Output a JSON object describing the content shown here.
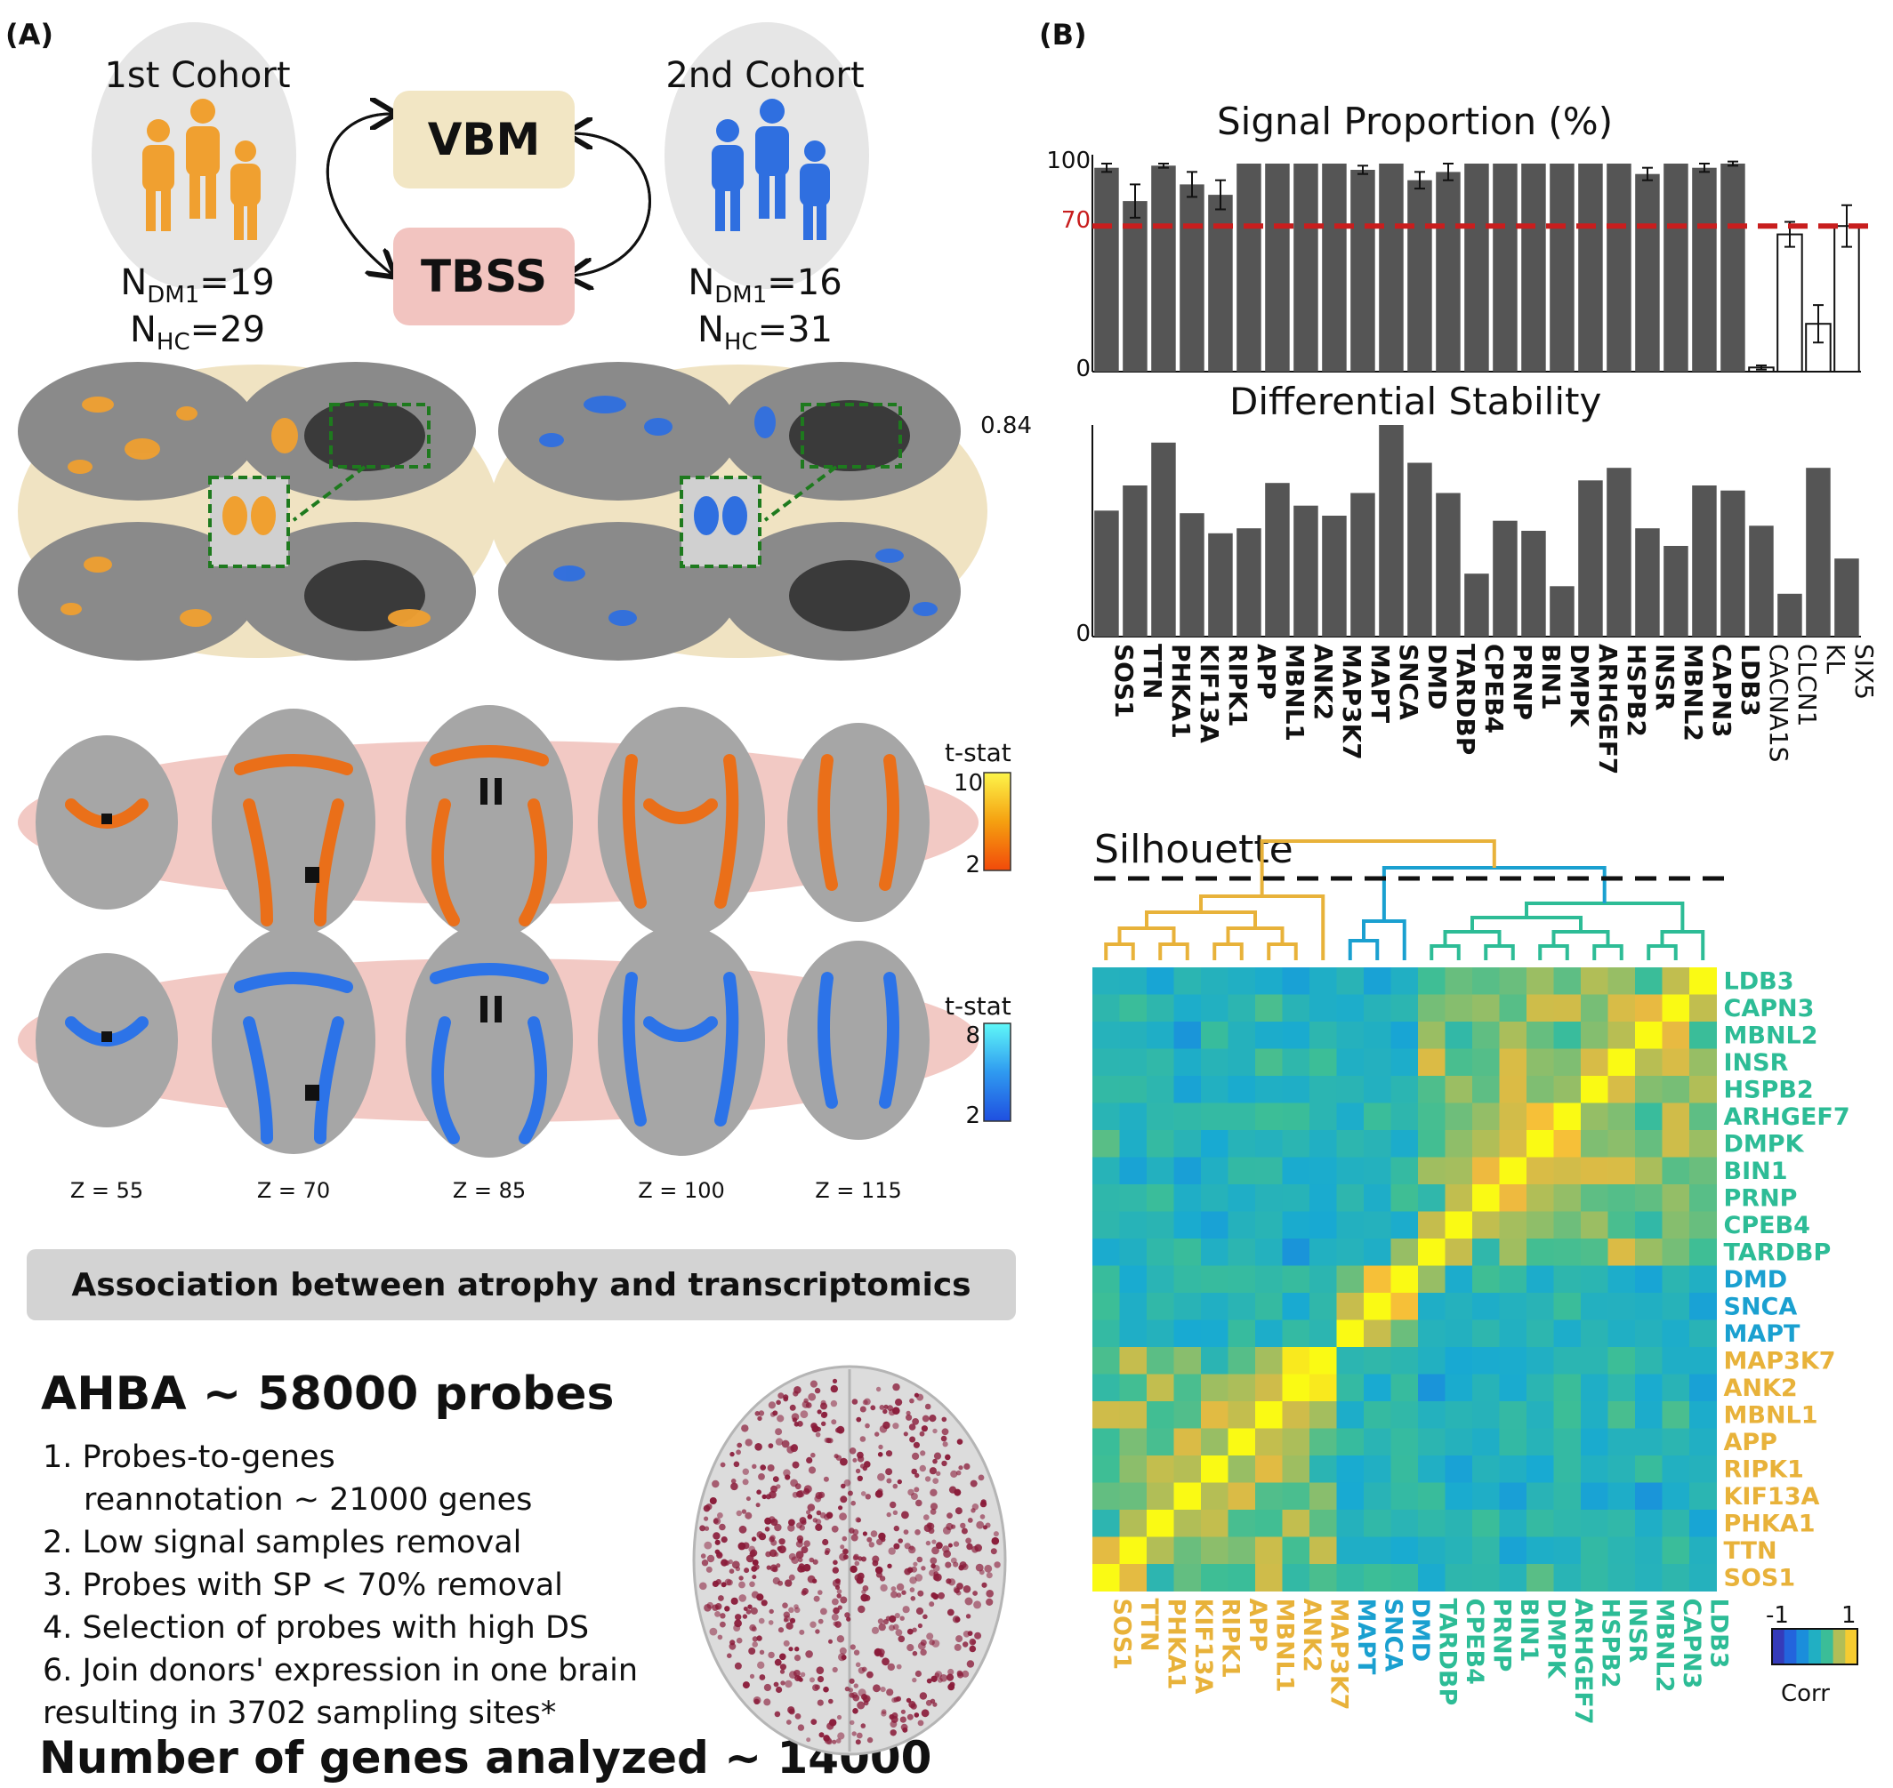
{
  "panel_a": {
    "label": "(A)",
    "cohort1": {
      "title": "1st Cohort",
      "n_dm1_prefix": "N",
      "n_dm1_sub": "DM1",
      "n_dm1_value": "=19",
      "n_hc_prefix": "N",
      "n_hc_sub": "HC",
      "n_hc_value": "=29",
      "color": "#f0a030"
    },
    "cohort2": {
      "title": "2nd Cohort",
      "n_dm1_prefix": "N",
      "n_dm1_sub": "DM1",
      "n_dm1_value": "=16",
      "n_hc_prefix": "N",
      "n_hc_sub": "HC",
      "n_hc_value": "=31",
      "color": "#2f6fe0"
    },
    "methods": {
      "vbm": "VBM",
      "tbss": "TBSS",
      "vbm_color": "#f2e6c4",
      "tbss_color": "#f2c4c0"
    },
    "tbss_rows": {
      "orange_colorbar": {
        "title": "t-stat",
        "max": "10",
        "min": "2"
      },
      "blue_colorbar": {
        "title": "t-stat",
        "max": "8",
        "min": "2"
      },
      "z_labels": [
        "Z = 55",
        "Z = 70",
        "Z = 85",
        "Z = 100",
        "Z = 115"
      ]
    },
    "association_banner": "Association between atrophy and transcriptomics",
    "ahba_title": "AHBA ~ 58000 probes",
    "steps": [
      "1. Probes-to-genes",
      "    reannotation ~ 21000 genes",
      "2. Low signal samples removal",
      "3. Probes with SP < 70% removal",
      "4. Selection of probes with high DS",
      "6. Join donors' expression in one brain",
      "resulting in 3702 sampling sites*"
    ],
    "genes_analyzed": "Number of genes analyzed ~ 14000"
  },
  "panel_b": {
    "label": "(B)",
    "chart_data": [
      {
        "type": "bar",
        "title": "Signal Proportion (%)",
        "ylim": [
          0,
          100
        ],
        "yticks": [
          "0",
          "100"
        ],
        "threshold": {
          "value": 70,
          "label": "70",
          "color": "#c81e1e"
        },
        "categories": [
          "SOS1",
          "TTN",
          "PHKA1",
          "KIF13A",
          "RIPK1",
          "APP",
          "MBNL1",
          "ANK2",
          "MAP3K7",
          "MAPT",
          "SNCA",
          "DMD",
          "TARDBP",
          "CPEB4",
          "PRNP",
          "BIN1",
          "DMPK",
          "ARHGEF7",
          "HSPB2",
          "INSR",
          "MBNL2",
          "CAPN3",
          "LDB3",
          "CACNA1S",
          "CLCN1",
          "KL",
          "SIX5"
        ],
        "values": [
          98,
          82,
          99,
          90,
          85,
          100,
          100,
          100,
          100,
          97,
          100,
          92,
          96,
          100,
          100,
          100,
          100,
          100,
          100,
          95,
          100,
          98,
          100,
          2,
          66,
          23,
          70
        ],
        "errors": [
          2,
          8,
          1,
          6,
          7,
          0,
          0,
          0,
          0,
          2,
          0,
          4,
          4,
          0,
          0,
          0,
          0,
          0,
          0,
          3,
          0,
          2,
          1,
          1,
          6,
          9,
          10
        ],
        "filled": [
          true,
          true,
          true,
          true,
          true,
          true,
          true,
          true,
          true,
          true,
          true,
          true,
          true,
          true,
          true,
          true,
          true,
          true,
          true,
          true,
          true,
          true,
          true,
          false,
          false,
          false,
          false
        ]
      },
      {
        "type": "bar",
        "title": "Differential Stability",
        "ylim": [
          0,
          0.84
        ],
        "yticks": [
          "0",
          "0.84"
        ],
        "categories": [
          "SOS1",
          "TTN",
          "PHKA1",
          "KIF13A",
          "RIPK1",
          "APP",
          "MBNL1",
          "ANK2",
          "MAP3K7",
          "MAPT",
          "SNCA",
          "DMD",
          "TARDBP",
          "CPEB4",
          "PRNP",
          "BIN1",
          "DMPK",
          "ARHGEF7",
          "HSPB2",
          "INSR",
          "MBNL2",
          "CAPN3",
          "LDB3",
          "CACNA1S",
          "CLCN1",
          "KL",
          "SIX5"
        ],
        "values": [
          0.5,
          0.6,
          0.77,
          0.49,
          0.41,
          0.43,
          0.61,
          0.52,
          0.48,
          0.57,
          0.84,
          0.69,
          0.57,
          0.25,
          0.46,
          0.42,
          0.2,
          0.62,
          0.67,
          0.43,
          0.36,
          0.6,
          0.58,
          0.44,
          0.17,
          0.67,
          0.31
        ],
        "bold": [
          true,
          true,
          true,
          true,
          true,
          true,
          true,
          true,
          true,
          true,
          true,
          true,
          true,
          true,
          true,
          true,
          true,
          true,
          true,
          true,
          true,
          true,
          true,
          false,
          false,
          false,
          false
        ]
      },
      {
        "type": "heatmap",
        "dendrogram_label": "Silhouette",
        "categories": [
          "SOS1",
          "TTN",
          "PHKA1",
          "KIF13A",
          "RIPK1",
          "APP",
          "MBNL1",
          "ANK2",
          "MAP3K7",
          "MAPT",
          "SNCA",
          "DMD",
          "TARDBP",
          "CPEB4",
          "PRNP",
          "BIN1",
          "DMPK",
          "ARHGEF7",
          "HSPB2",
          "INSR",
          "MBNL2",
          "CAPN3",
          "LDB3"
        ],
        "clusters": [
          0,
          0,
          0,
          0,
          0,
          0,
          0,
          0,
          0,
          1,
          1,
          1,
          2,
          2,
          2,
          2,
          2,
          2,
          2,
          2,
          2,
          2,
          2
        ],
        "cluster_colors": [
          "#e8b23a",
          "#1aa0d0",
          "#2dbc96"
        ],
        "colorbar": {
          "min": "-1",
          "max": "1",
          "label": "Corr"
        }
      }
    ]
  }
}
